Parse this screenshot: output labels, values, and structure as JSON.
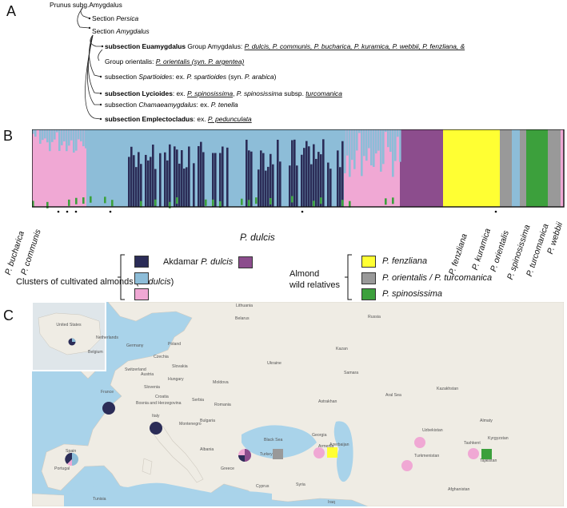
{
  "panels": {
    "a": "A",
    "b": "B",
    "c": "C"
  },
  "tree": {
    "root": "Prunus subg.Amygdalus",
    "section_persica": [
      "Section ",
      "Persica"
    ],
    "section_amygdalus": [
      "Section ",
      "Amygdalus"
    ],
    "euamygdalus": {
      "bold": "subsection Euamygdalus",
      "rest": " Group Amygdalus: ",
      "taxa": "P. dulcis, P. communis, P. bucharica, P. kuramica, P. webbii, P. fenzliana, &"
    },
    "orientalis": {
      "prefix": "Group orientalis",
      "colon": ": ",
      "taxa": "P. orientalis (syn. P. argentea)"
    },
    "spartioides": {
      "prefix": "subsection ",
      "name": "Spartioides",
      "rest": ": ex. ",
      "taxa": "P. spartioides",
      "syn": " (syn. ",
      "syn_taxa": "P. arabica",
      "end": ")"
    },
    "lycioides": {
      "bold": "subsection Lycioides",
      "rest": ": ex. ",
      "taxa1": "P. spinosissima",
      "mid": ", ",
      "taxa2": "P. spinosissima",
      "subsp": " subsp. ",
      "taxa3": "turcomanica"
    },
    "chamaeamygdalus": {
      "prefix": "subsection ",
      "name": "Chamaeamygdalus",
      "rest": ": ex. ",
      "taxa": "P. tenella"
    },
    "emplectocladus": {
      "bold": "subsection Emplectocladus",
      "rest": ": ex. ",
      "taxa": "P. pedunculata"
    }
  },
  "structure": {
    "labels": [
      "P. bucharica",
      "P. communis",
      "P. dulcis",
      "P. fenzliana",
      "P. kuramica",
      "P. orientalis",
      "P. spinosissima",
      "P. turcomanica",
      "P. webbii"
    ],
    "colors": {
      "dark_navy": "#2b2c57",
      "light_blue": "#8dbdd8",
      "pink": "#f0a8d4",
      "purple": "#8c4d8d",
      "yellow": "#ffff33",
      "grey": "#999999",
      "green": "#3ca03c"
    }
  },
  "legend": {
    "cultivated_label": "Clusters of cultivated almonds (",
    "cultivated_taxon": "P. dulcis",
    "cultivated_end": ")",
    "akdamar_label": "Akdamar ",
    "akdamar_taxon": "P. dulcis",
    "wild_label_1": "Almond",
    "wild_label_2": "wild relatives",
    "wild_items": [
      "P. fenzliana",
      "P. orientalis / P. turcomanica",
      "P. spinosissima"
    ]
  },
  "map": {
    "countries": [
      "Lithuania",
      "Belarus",
      "Netherlands",
      "Germany",
      "Poland",
      "Belgium",
      "Czechia",
      "Slovakia",
      "Ukraine",
      "Switzerland",
      "Austria",
      "Hungary",
      "Moldova",
      "France",
      "Slovenia",
      "Croatia",
      "Romania",
      "Bosnia and Herzegovina",
      "Serbia",
      "Italy",
      "Bulgaria",
      "Montenegro",
      "Spain",
      "Portugal",
      "Albania",
      "Greece",
      "Turkey",
      "Georgia",
      "Armenia",
      "Azerbaijan",
      "Kazakhstan",
      "Uzbekistan",
      "Kyrgyzstan",
      "Turkmenistan",
      "Tajikistan",
      "Cyprus",
      "Syria",
      "Tunisia",
      "Iraq",
      "Afghanistan",
      "Black Sea",
      "Russia",
      "Kazan",
      "Samara",
      "Astrakhan",
      "Almaty",
      "Tashkent",
      "Aral Sea"
    ],
    "inset_label": "United States"
  }
}
